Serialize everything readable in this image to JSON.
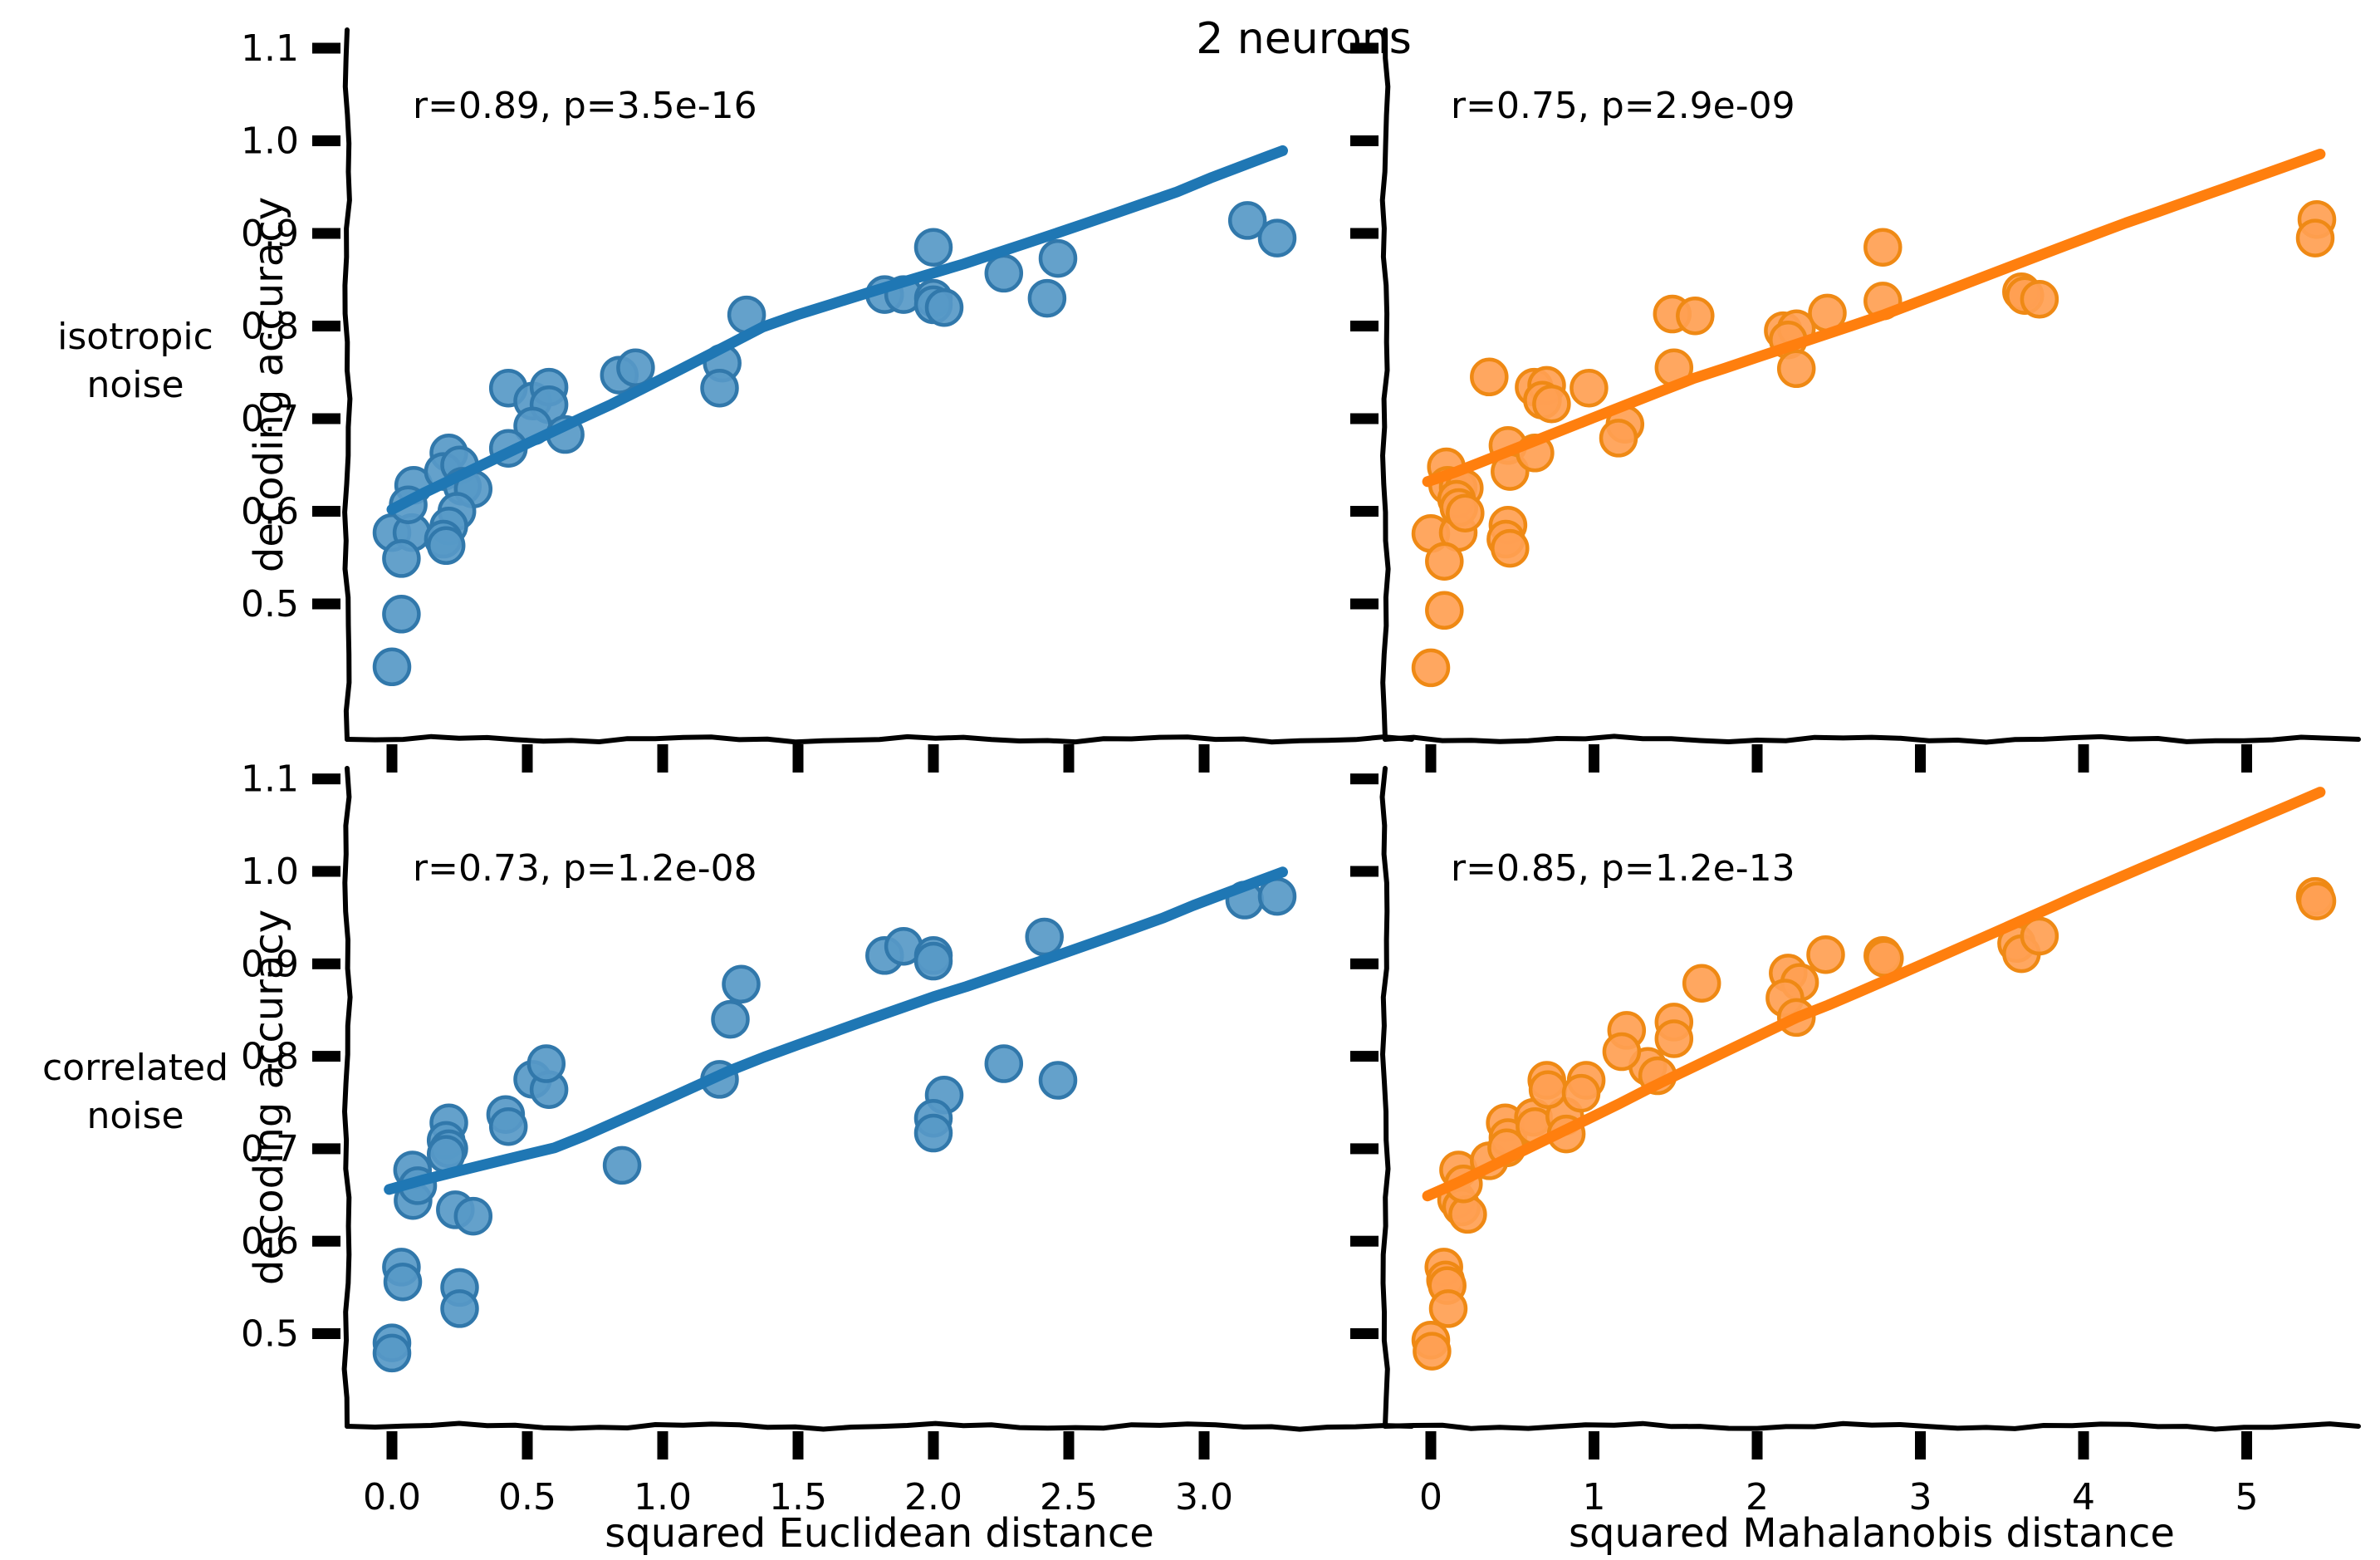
{
  "title": "2 neurons",
  "ylabel": "decoding accuracy",
  "colors": {
    "blue_line": "#1f77b4",
    "blue_fill": "#5799c7",
    "blue_edge": "#3178ab",
    "orange_line": "#ff7f0e",
    "orange_fill": "#ffa052",
    "orange_edge": "#ef8914",
    "axis": "#000000"
  },
  "rows": [
    {
      "label_line1": "isotropic",
      "label_line2": "noise"
    },
    {
      "label_line1": "correlated",
      "label_line2": "noise"
    }
  ],
  "cols": [
    {
      "xlabel": "squared Euclidean distance",
      "tick_values": [
        0.0,
        0.5,
        1.0,
        1.5,
        2.0,
        2.5,
        3.0
      ],
      "tick_labels": [
        "0.0",
        "0.5",
        "1.0",
        "1.5",
        "2.0",
        "2.5",
        "3.0"
      ],
      "xlim": [
        -0.17,
        3.77
      ]
    },
    {
      "xlabel": "squared Mahalanobis distance",
      "tick_values": [
        0,
        1,
        2,
        3,
        4,
        5
      ],
      "tick_labels": [
        "0",
        "1",
        "2",
        "3",
        "4",
        "5"
      ],
      "xlim": [
        -0.28,
        5.68
      ]
    }
  ],
  "ytick_values": [
    1.1,
    1.0,
    0.9,
    0.8,
    0.7,
    0.6,
    0.5
  ],
  "ytick_labels": [
    "1.1",
    "1.0",
    "0.9",
    "0.8",
    "0.7",
    "0.6",
    "0.5"
  ],
  "ylim_top": [
    0.35,
    1.12
  ],
  "ylim_bottom": [
    0.4,
    1.11
  ],
  "chart_data": [
    {
      "type": "scatter",
      "row": 0,
      "col": 0,
      "series_color": "blue",
      "annotation": "r=0.89, p=3.5e-16",
      "xlabel": "squared Euclidean distance",
      "ylabel": "decoding accuracy",
      "row_label": "isotropic noise",
      "points": [
        [
          0.0,
          0.432
        ],
        [
          0.035,
          0.489
        ],
        [
          0.0,
          0.577
        ],
        [
          0.074,
          0.577
        ],
        [
          0.035,
          0.549
        ],
        [
          0.08,
          0.628
        ],
        [
          0.06,
          0.607
        ],
        [
          0.21,
          0.663
        ],
        [
          0.19,
          0.643
        ],
        [
          0.25,
          0.65
        ],
        [
          0.26,
          0.627
        ],
        [
          0.3,
          0.624
        ],
        [
          0.24,
          0.6
        ],
        [
          0.21,
          0.584
        ],
        [
          0.19,
          0.57
        ],
        [
          0.2,
          0.563
        ],
        [
          0.43,
          0.733
        ],
        [
          0.52,
          0.719
        ],
        [
          0.58,
          0.734
        ],
        [
          0.58,
          0.715
        ],
        [
          0.52,
          0.692
        ],
        [
          0.43,
          0.668
        ],
        [
          0.64,
          0.683
        ],
        [
          0.84,
          0.747
        ],
        [
          0.9,
          0.755
        ],
        [
          1.22,
          0.76
        ],
        [
          1.21,
          0.733
        ],
        [
          1.31,
          0.812
        ],
        [
          1.82,
          0.834
        ],
        [
          1.89,
          0.834
        ],
        [
          2.0,
          0.885
        ],
        [
          2.0,
          0.83
        ],
        [
          2.0,
          0.823
        ],
        [
          2.04,
          0.82
        ],
        [
          2.26,
          0.857
        ],
        [
          2.42,
          0.83
        ],
        [
          2.46,
          0.873
        ],
        [
          3.16,
          0.914
        ],
        [
          3.27,
          0.895
        ]
      ],
      "trend": [
        [
          0.0,
          0.602
        ],
        [
          0.7,
          0.7
        ],
        [
          1.37,
          0.8
        ],
        [
          2.0,
          0.856
        ],
        [
          2.9,
          0.946
        ],
        [
          3.29,
          0.988
        ]
      ]
    },
    {
      "type": "scatter",
      "row": 0,
      "col": 1,
      "series_color": "orange",
      "annotation": "r=0.75, p=2.9e-09",
      "xlabel": "squared Mahalanobis distance",
      "ylabel": "decoding accuracy",
      "row_label": "isotropic noise",
      "points": [
        [
          0.0,
          0.431
        ],
        [
          0.083,
          0.493
        ],
        [
          0.0,
          0.576
        ],
        [
          0.168,
          0.577
        ],
        [
          0.083,
          0.546
        ],
        [
          0.095,
          0.648
        ],
        [
          0.103,
          0.628
        ],
        [
          0.168,
          0.626
        ],
        [
          0.205,
          0.625
        ],
        [
          0.158,
          0.613
        ],
        [
          0.172,
          0.604
        ],
        [
          0.21,
          0.598
        ],
        [
          0.358,
          0.745
        ],
        [
          0.473,
          0.671
        ],
        [
          0.485,
          0.643
        ],
        [
          0.473,
          0.585
        ],
        [
          0.46,
          0.57
        ],
        [
          0.485,
          0.56
        ],
        [
          0.638,
          0.663
        ],
        [
          0.633,
          0.734
        ],
        [
          0.71,
          0.736
        ],
        [
          0.684,
          0.72
        ],
        [
          0.74,
          0.716
        ],
        [
          0.969,
          0.733
        ],
        [
          1.19,
          0.694
        ],
        [
          1.15,
          0.679
        ],
        [
          1.49,
          0.755
        ],
        [
          1.48,
          0.813
        ],
        [
          1.62,
          0.811
        ],
        [
          2.16,
          0.795
        ],
        [
          2.24,
          0.797
        ],
        [
          2.19,
          0.785
        ],
        [
          2.24,
          0.754
        ],
        [
          2.43,
          0.814
        ],
        [
          2.77,
          0.885
        ],
        [
          2.77,
          0.827
        ],
        [
          3.62,
          0.837
        ],
        [
          3.64,
          0.833
        ],
        [
          3.73,
          0.829
        ],
        [
          5.43,
          0.915
        ],
        [
          5.42,
          0.895
        ]
      ],
      "trend": [
        [
          -0.02,
          0.632
        ],
        [
          1.61,
          0.742
        ],
        [
          2.77,
          0.813
        ],
        [
          4.26,
          0.91
        ],
        [
          5.45,
          0.987
        ]
      ]
    },
    {
      "type": "scatter",
      "row": 1,
      "col": 0,
      "series_color": "blue",
      "annotation": "r=0.73, p=1.2e-08",
      "xlabel": "squared Euclidean distance",
      "ylabel": "decoding accuracy",
      "row_label": "correlated noise",
      "points": [
        [
          0.0,
          0.49
        ],
        [
          0.0,
          0.479
        ],
        [
          0.035,
          0.572
        ],
        [
          0.04,
          0.556
        ],
        [
          0.25,
          0.55
        ],
        [
          0.25,
          0.527
        ],
        [
          0.078,
          0.644
        ],
        [
          0.076,
          0.677
        ],
        [
          0.095,
          0.66
        ],
        [
          0.234,
          0.634
        ],
        [
          0.3,
          0.627
        ],
        [
          0.21,
          0.728
        ],
        [
          0.2,
          0.709
        ],
        [
          0.21,
          0.7
        ],
        [
          0.2,
          0.694
        ],
        [
          0.42,
          0.737
        ],
        [
          0.43,
          0.724
        ],
        [
          0.52,
          0.775
        ],
        [
          0.58,
          0.764
        ],
        [
          0.57,
          0.792
        ],
        [
          0.85,
          0.682
        ],
        [
          1.21,
          0.775
        ],
        [
          1.29,
          0.878
        ],
        [
          1.25,
          0.84
        ],
        [
          1.82,
          0.909
        ],
        [
          1.89,
          0.919
        ],
        [
          2.0,
          0.909
        ],
        [
          2.0,
          0.903
        ],
        [
          2.41,
          0.929
        ],
        [
          2.26,
          0.792
        ],
        [
          2.46,
          0.774
        ],
        [
          2.04,
          0.758
        ],
        [
          2.0,
          0.733
        ],
        [
          2.0,
          0.717
        ],
        [
          3.15,
          0.969
        ],
        [
          3.27,
          0.973
        ]
      ],
      "trend": [
        [
          -0.01,
          0.656
        ],
        [
          0.6,
          0.7
        ],
        [
          1.25,
          0.786
        ],
        [
          2.0,
          0.863
        ],
        [
          2.85,
          0.951
        ],
        [
          3.29,
          0.998
        ]
      ]
    },
    {
      "type": "scatter",
      "row": 1,
      "col": 1,
      "series_color": "orange",
      "annotation": "r=0.85, p=1.2e-13",
      "xlabel": "squared Mahalanobis distance",
      "ylabel": "decoding accuracy",
      "row_label": "correlated noise",
      "points": [
        [
          0.0,
          0.493
        ],
        [
          0.007,
          0.481
        ],
        [
          0.08,
          0.572
        ],
        [
          0.09,
          0.558
        ],
        [
          0.1,
          0.552
        ],
        [
          0.107,
          0.527
        ],
        [
          0.158,
          0.645
        ],
        [
          0.188,
          0.637
        ],
        [
          0.226,
          0.629
        ],
        [
          0.17,
          0.677
        ],
        [
          0.2,
          0.662
        ],
        [
          0.358,
          0.687
        ],
        [
          0.456,
          0.728
        ],
        [
          0.473,
          0.712
        ],
        [
          0.465,
          0.701
        ],
        [
          0.629,
          0.734
        ],
        [
          0.638,
          0.724
        ],
        [
          0.821,
          0.735
        ],
        [
          0.83,
          0.716
        ],
        [
          0.711,
          0.774
        ],
        [
          0.718,
          0.764
        ],
        [
          0.952,
          0.774
        ],
        [
          0.921,
          0.76
        ],
        [
          1.33,
          0.789
        ],
        [
          1.39,
          0.779
        ],
        [
          1.2,
          0.828
        ],
        [
          1.17,
          0.805
        ],
        [
          1.49,
          0.837
        ],
        [
          1.49,
          0.819
        ],
        [
          1.66,
          0.879
        ],
        [
          2.19,
          0.89
        ],
        [
          2.26,
          0.88
        ],
        [
          2.17,
          0.863
        ],
        [
          2.24,
          0.842
        ],
        [
          2.42,
          0.91
        ],
        [
          2.77,
          0.909
        ],
        [
          2.78,
          0.906
        ],
        [
          3.59,
          0.922
        ],
        [
          3.62,
          0.911
        ],
        [
          3.73,
          0.93
        ],
        [
          5.42,
          0.973
        ],
        [
          5.43,
          0.968
        ]
      ],
      "trend": [
        [
          -0.02,
          0.649
        ],
        [
          1.155,
          0.748
        ],
        [
          2.24,
          0.842
        ],
        [
          3.8,
          0.96
        ],
        [
          5.45,
          1.087
        ]
      ]
    }
  ]
}
